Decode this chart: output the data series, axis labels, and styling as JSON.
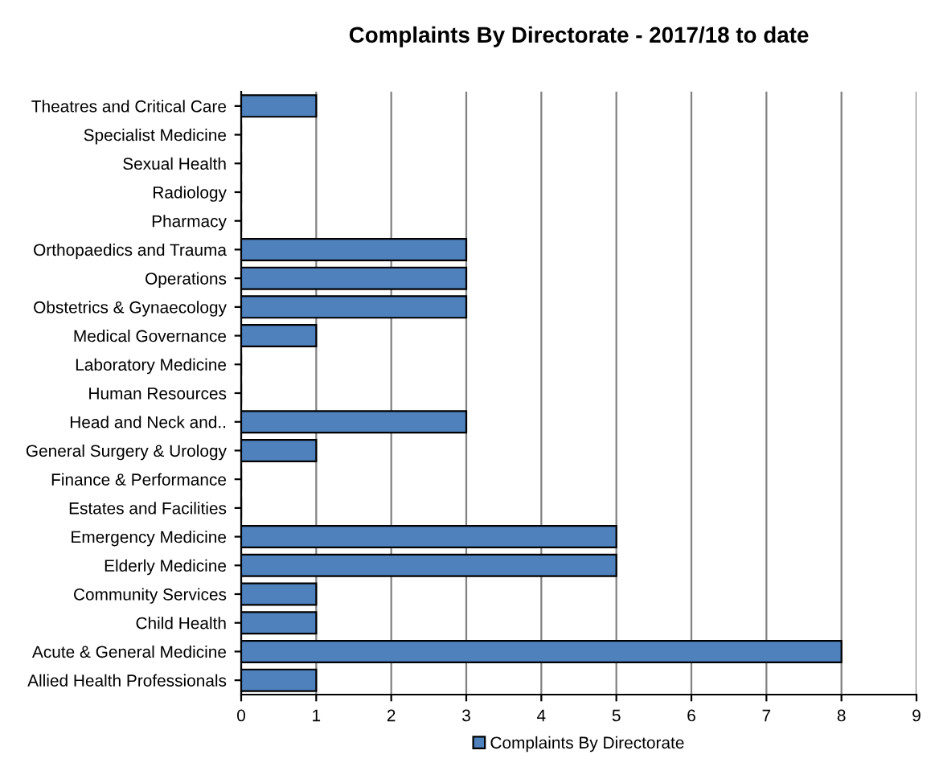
{
  "chart_data": {
    "type": "bar",
    "orientation": "horizontal",
    "title": "Complaints By Directorate - 2017/18 to date",
    "categories": [
      "Theatres and Critical Care",
      "Specialist Medicine",
      "Sexual Health",
      "Radiology",
      "Pharmacy",
      "Orthopaedics and Trauma",
      "Operations",
      "Obstetrics & Gynaecology",
      "Medical Governance",
      "Laboratory Medicine",
      "Human Resources",
      "Head and Neck and..",
      "General Surgery & Urology",
      "Finance & Performance",
      "Estates and Facilities",
      "Emergency Medicine",
      "Elderly Medicine",
      "Community Services",
      "Child Health",
      "Acute & General Medicine",
      "Allied Health Professionals"
    ],
    "series": [
      {
        "name": "Complaints By Directorate",
        "color": "#4f81bd",
        "values": [
          1,
          0,
          0,
          0,
          0,
          3,
          3,
          3,
          1,
          0,
          0,
          3,
          1,
          0,
          0,
          5,
          5,
          1,
          1,
          8,
          1
        ]
      }
    ],
    "xlim": [
      0,
      9
    ],
    "xticks": [
      0,
      1,
      2,
      3,
      4,
      5,
      6,
      7,
      8,
      9
    ],
    "grid": "x",
    "legend": "bottom"
  }
}
